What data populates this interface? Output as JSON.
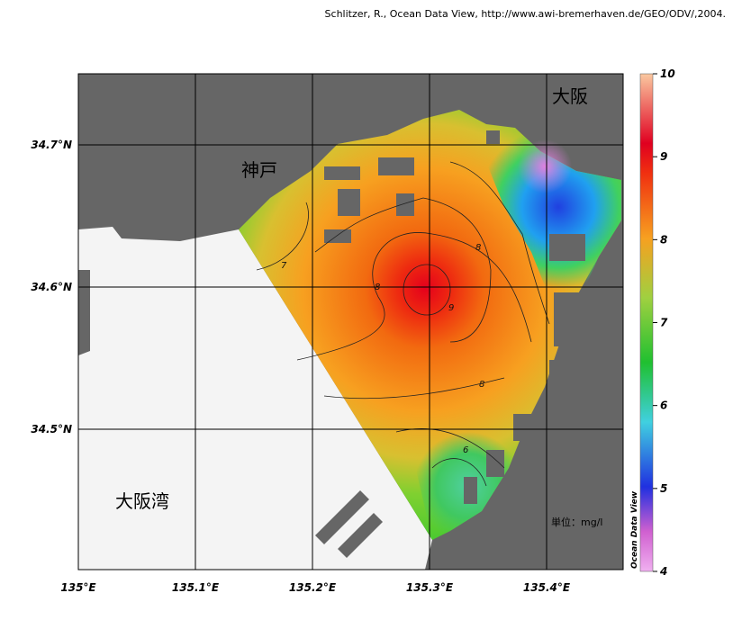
{
  "credit": "Schlitzer, R., Ocean Data View, http://www.awi-bremerhaven.de/GEO/ODV/,2004.",
  "places": [
    "大阪",
    "神戸",
    "大阪湾"
  ],
  "x_labels": [
    "135°E",
    "135.1°E",
    "135.2°E",
    "135.3°E",
    "135.4°E"
  ],
  "y_labels": [
    "34.7°N",
    "34.6°N",
    "34.5°N"
  ],
  "colorbar": {
    "title": "Ocean Data View",
    "ticks": [
      4,
      5,
      6,
      7,
      8,
      9,
      10
    ]
  },
  "unit": "単位：mg/l",
  "contour_labels": [
    "7",
    "8",
    "9",
    "8",
    "8",
    "6"
  ]
}
